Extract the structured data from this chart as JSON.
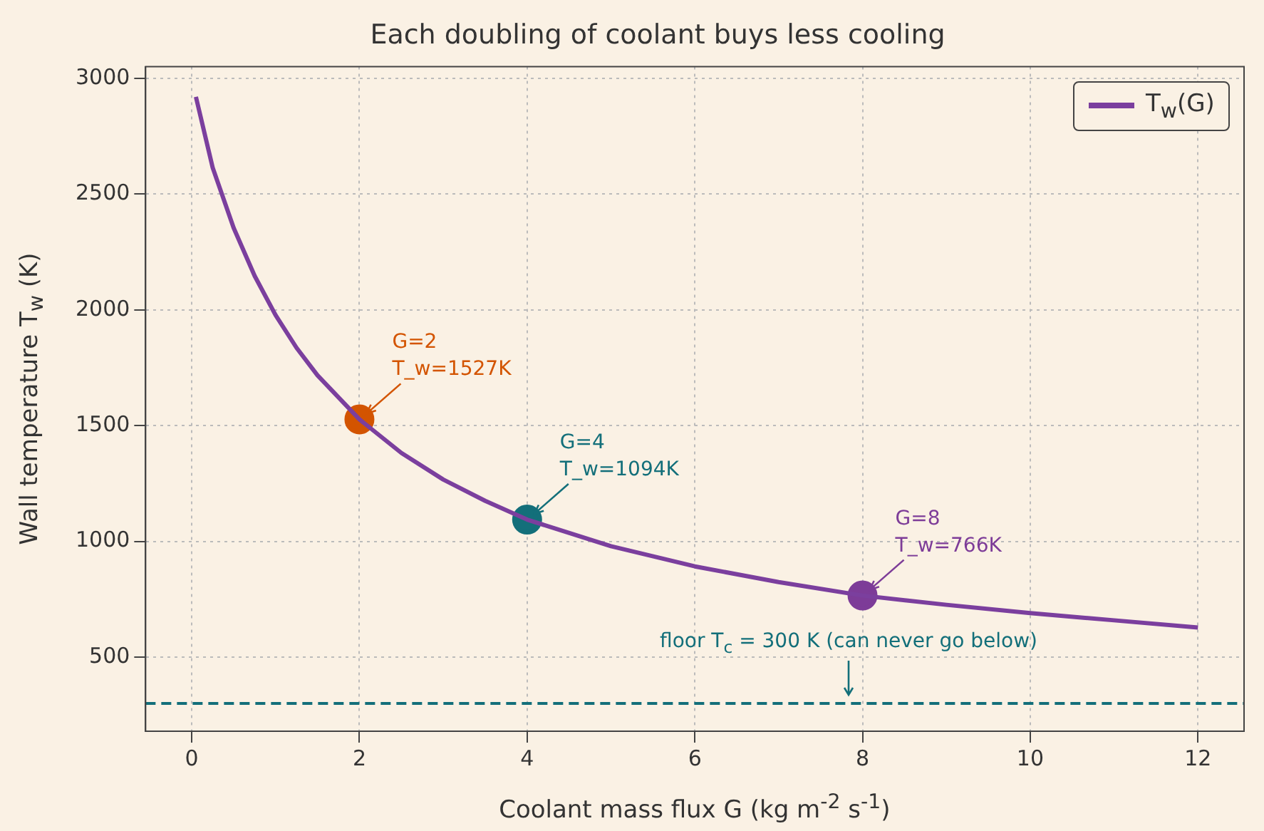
{
  "chart_data": {
    "type": "line",
    "title": "Each doubling of coolant buys less cooling",
    "xlabel": "Coolant mass flux  G  (kg m$^{-2}$ s$^{-1}$)",
    "ylabel": "Wall temperature  T$_{w}$  (K)",
    "xlim": [
      -0.55,
      12.55
    ],
    "ylim": [
      180,
      3050
    ],
    "xticks": [
      0,
      2,
      4,
      6,
      8,
      10,
      12
    ],
    "yticks": [
      500,
      1000,
      1500,
      2000,
      2500,
      3000
    ],
    "grid": true,
    "legend": "top right",
    "series": [
      {
        "name": "T$_{w}$(G)",
        "color": "#7b3f9e",
        "marker": "none",
        "x": [
          0.05,
          0.25,
          0.5,
          0.75,
          1,
          1.25,
          1.5,
          2,
          2.5,
          3,
          3.5,
          4,
          5,
          6,
          7,
          8,
          9,
          10,
          11,
          12
        ],
        "values": [
          2920,
          2614,
          2354,
          2147,
          1977,
          1836,
          1717,
          1527,
          1382,
          1267,
          1175,
          1094,
          979,
          892,
          824,
          766,
          726,
          690,
          659,
          628
        ]
      },
      {
        "type": "scatter",
        "marker": "circle",
        "x": [
          2,
          4,
          8
        ],
        "values": [
          1527,
          1094,
          766
        ],
        "colors": [
          "#d35400",
          "#136f7a",
          "#7d3c98"
        ]
      }
    ],
    "ref_lines": [
      {
        "axis": "y",
        "value": 300,
        "color": "#136f7a",
        "line_style": "dashed",
        "label": "floor T$_{c}$ = 300 K (can never go below)"
      }
    ],
    "annotations": [
      {
        "text": "G=2\nT_w=1527K",
        "x": 2,
        "y": 1527
      },
      {
        "text": "G=4\nT_w=1094K",
        "x": 4,
        "y": 1094
      },
      {
        "text": "G=8\nT_w=766K",
        "x": 8,
        "y": 766
      }
    ]
  }
}
